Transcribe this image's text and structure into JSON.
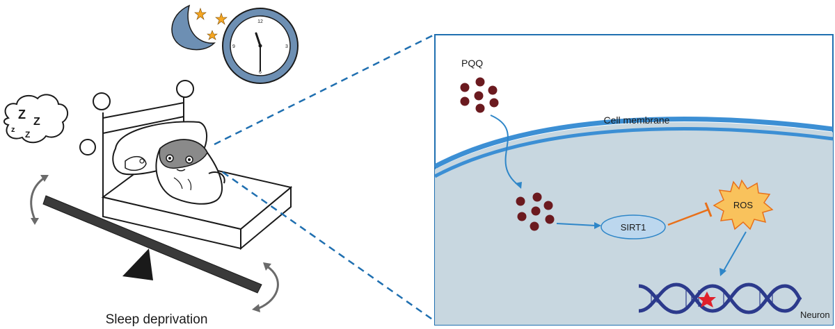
{
  "left_panel": {
    "caption": "Sleep deprivation",
    "thought_bubble": {
      "text": "Z Z\nZ Z"
    },
    "clock": {
      "numerals": [
        "12",
        "3",
        "6",
        "9"
      ]
    }
  },
  "right_panel": {
    "compound_label": "PQQ",
    "membrane_label": "Cell membrane",
    "enzyme_label": "SIRT1",
    "ros_label": "ROS",
    "cell_label": "Neuron"
  },
  "colors": {
    "cell_interior": "#c8d7e0",
    "membrane": "#3c8fd4",
    "compound": "#6b1a1f",
    "activation_arrow": "#2e86c8",
    "inhibition_arrow": "#e8701a",
    "ros_fill": "#f9c25c",
    "ros_stroke": "#e8701a",
    "dna": "#2c3a8c",
    "damage_star": "#e0202a",
    "moon": "#6d8fb3",
    "zoom_lines": "#1f6fb0"
  },
  "icons": [
    "moon-icon",
    "star-icon",
    "clock-icon",
    "sleep-bubble-icon",
    "bed-icon",
    "mouse-icon",
    "seesaw-icon",
    "dna-icon",
    "ros-burst-icon",
    "damage-star-icon"
  ]
}
